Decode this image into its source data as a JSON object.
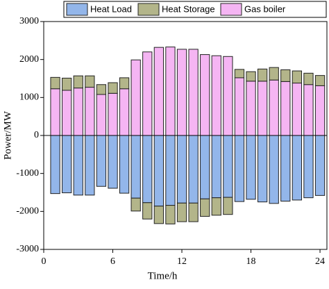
{
  "chart_data": {
    "type": "bar",
    "stacked": true,
    "xlabel": "Time/h",
    "ylabel": "Power/MW",
    "x": [
      1,
      2,
      3,
      4,
      5,
      6,
      7,
      8,
      9,
      10,
      11,
      12,
      13,
      14,
      15,
      16,
      17,
      18,
      19,
      20,
      21,
      22,
      23,
      24
    ],
    "series": [
      {
        "name": "Heat Load",
        "color": "#93b6ea",
        "values": [
          -1530,
          -1510,
          -1570,
          -1570,
          -1340,
          -1390,
          -1520,
          -1650,
          -1770,
          -1860,
          -1840,
          -1780,
          -1780,
          -1670,
          -1640,
          -1630,
          -1740,
          -1680,
          -1750,
          -1790,
          -1730,
          -1700,
          -1640,
          -1580
        ]
      },
      {
        "name": "Heat Storage",
        "color": "#b3b58a",
        "values": [
          300,
          320,
          320,
          300,
          260,
          280,
          290,
          -340,
          -430,
          -460,
          -490,
          -490,
          -490,
          -460,
          -460,
          -450,
          220,
          250,
          320,
          330,
          310,
          320,
          300,
          270
        ]
      },
      {
        "name": "Gas boiler",
        "color": "#f5b5f3",
        "values": [
          1230,
          1190,
          1250,
          1270,
          1080,
          1110,
          1230,
          1990,
          2200,
          2320,
          2330,
          2270,
          2270,
          2130,
          2100,
          2080,
          1520,
          1430,
          1430,
          1460,
          1420,
          1380,
          1340,
          1310
        ]
      }
    ],
    "xlim": [
      0,
      24.6
    ],
    "xticks": [
      0,
      6,
      12,
      18,
      24
    ],
    "ylim": [
      -3000,
      3000
    ],
    "yticks": [
      -3000,
      -2000,
      -1000,
      0,
      1000,
      2000,
      3000
    ]
  }
}
